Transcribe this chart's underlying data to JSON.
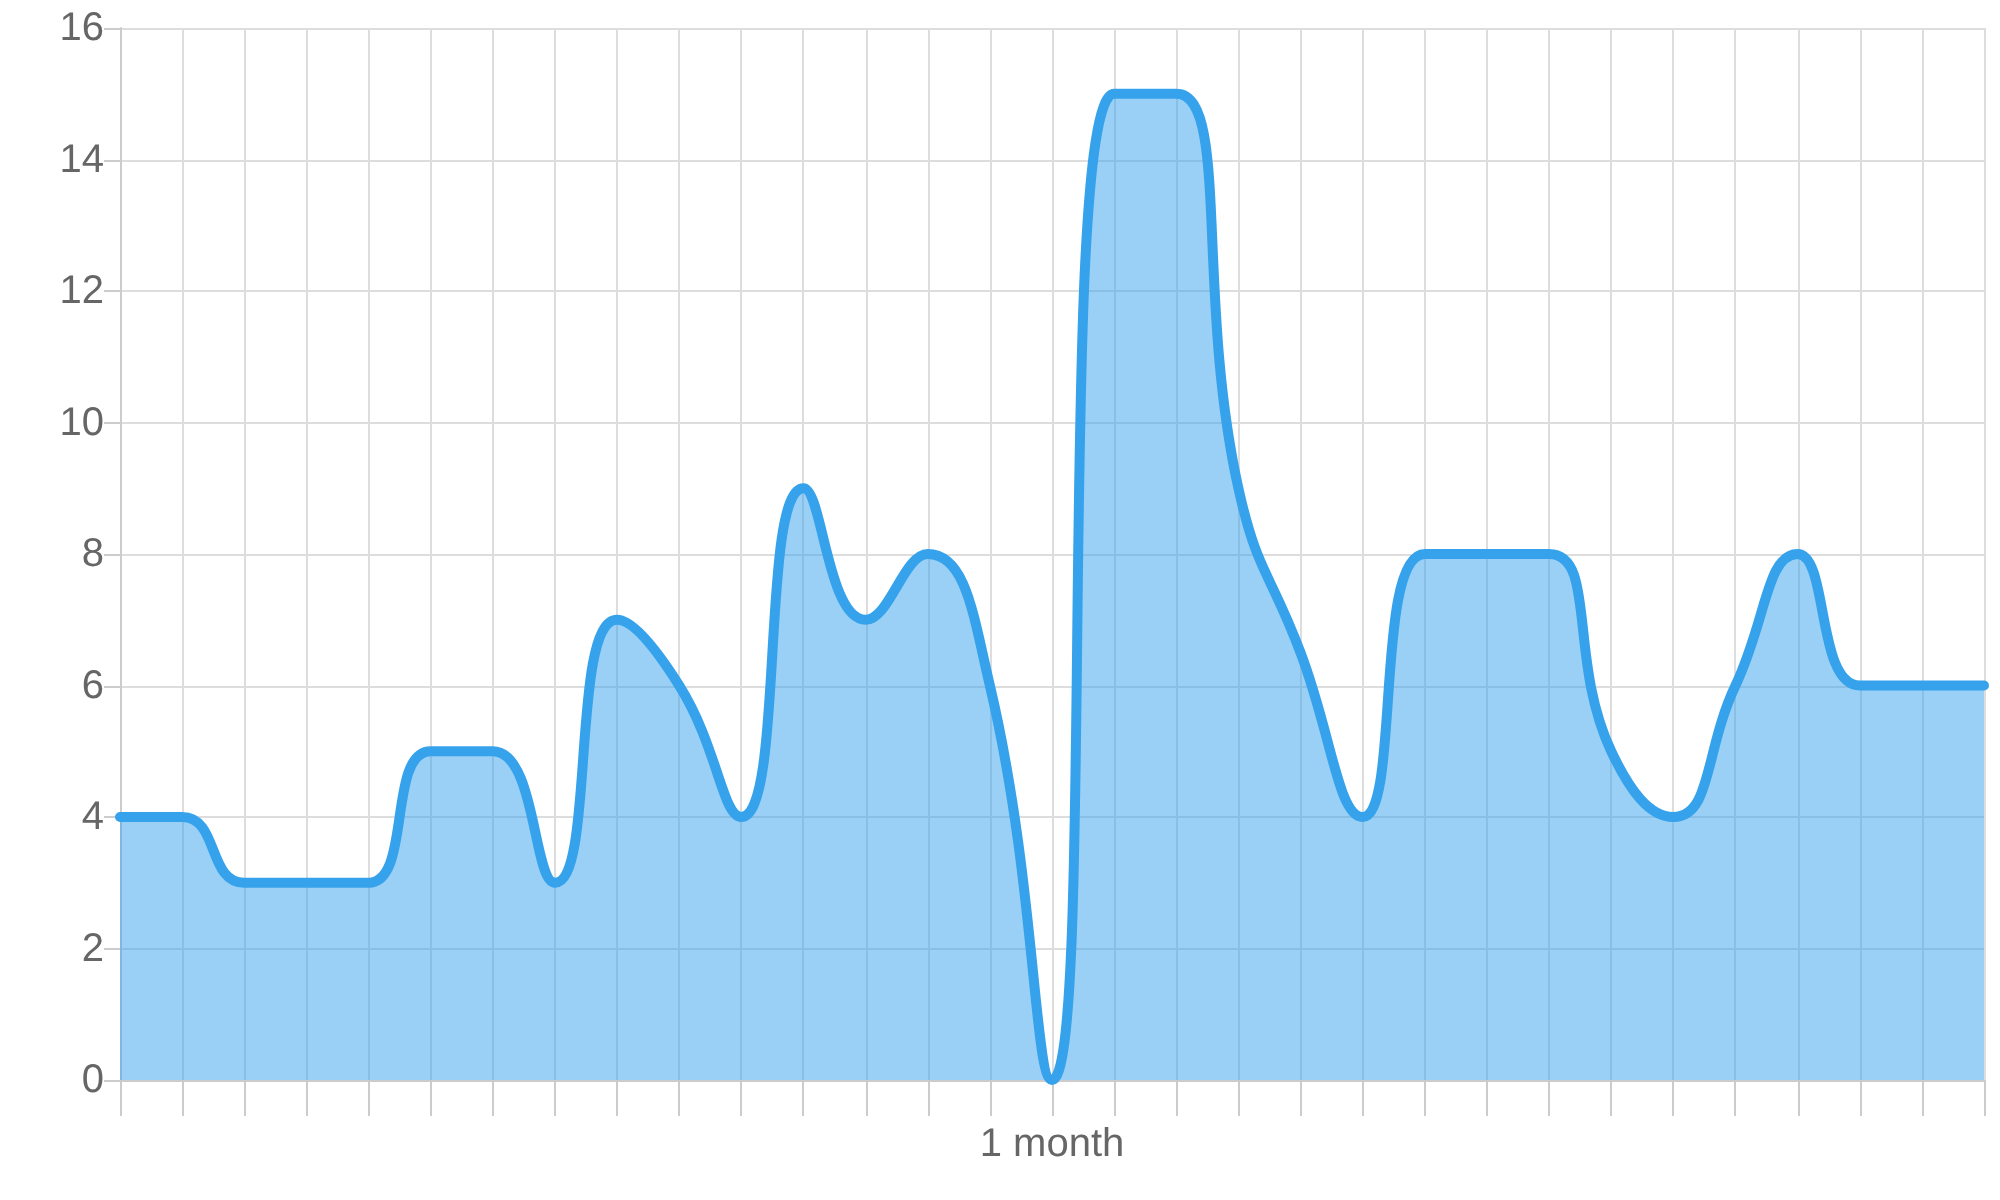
{
  "chart_data": {
    "type": "area",
    "categories": [
      null,
      null,
      null,
      null,
      null,
      null,
      null,
      null,
      null,
      null,
      null,
      null,
      null,
      null,
      null,
      "1 month",
      null,
      null,
      null,
      null,
      null,
      null,
      null,
      null,
      null,
      null,
      null,
      null,
      null,
      null,
      null
    ],
    "series": [
      {
        "color": "#36a2eb",
        "values": [
          4,
          4,
          3,
          3,
          3,
          5,
          5,
          3,
          7,
          6,
          4,
          9,
          7,
          8,
          6,
          0,
          15,
          15,
          9,
          6.5,
          4,
          8,
          8,
          8,
          5,
          4,
          6,
          8,
          6,
          6,
          6
        ]
      }
    ],
    "ylim": [
      0,
      16
    ],
    "yticks": [
      0,
      2,
      4,
      6,
      8,
      10,
      12,
      14,
      16
    ],
    "grid": true,
    "marker": "none",
    "line_style": "solid"
  }
}
